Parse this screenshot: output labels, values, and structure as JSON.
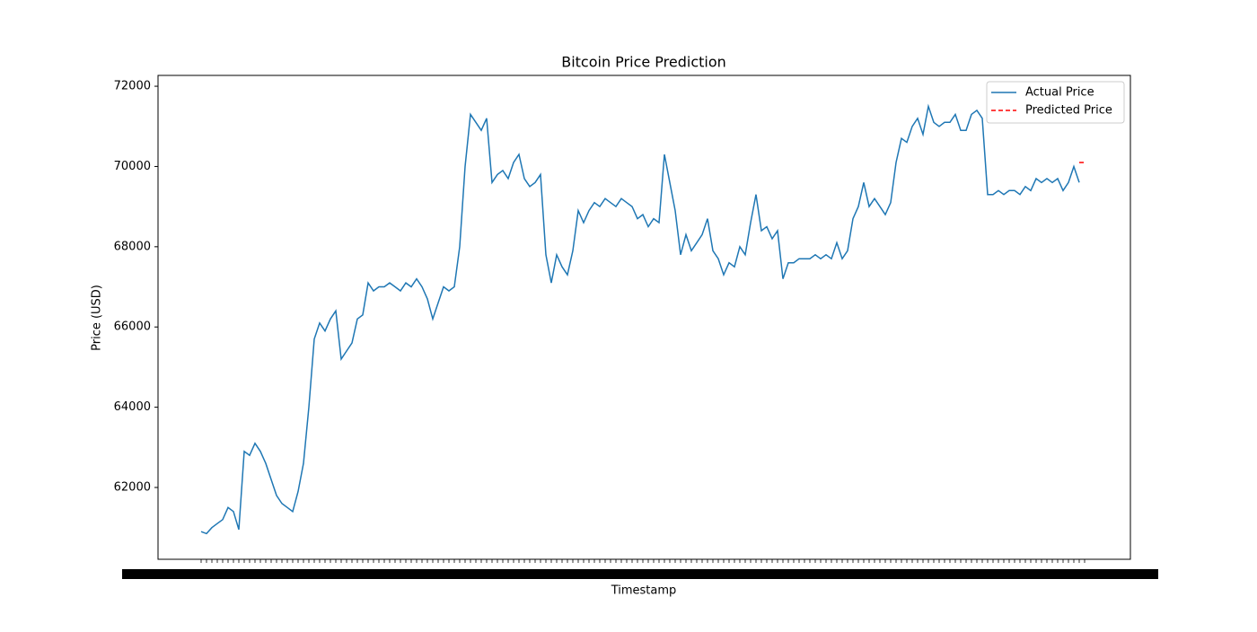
{
  "chart_data": {
    "type": "line",
    "title": "Bitcoin Price Prediction",
    "x_label": "Timestamp",
    "y_label": "Price (USD)",
    "categories": [
      null,
      null,
      null,
      null,
      null,
      null,
      null,
      null,
      null,
      null,
      null,
      null,
      null,
      null,
      null,
      null,
      null,
      null,
      null,
      null,
      null,
      null,
      null,
      null,
      null,
      null,
      null,
      null,
      null,
      null,
      null,
      null,
      null,
      null,
      null,
      null,
      null,
      null,
      null,
      null,
      null,
      null,
      null,
      null,
      null,
      null,
      null,
      null,
      null,
      null,
      null,
      null,
      null,
      null,
      null,
      null,
      null,
      null,
      null,
      null,
      null,
      null,
      null,
      null,
      null,
      null,
      null,
      null,
      null,
      null,
      null,
      null,
      null,
      null,
      null,
      null,
      null,
      null,
      null,
      null,
      null,
      null,
      null,
      null,
      null,
      null,
      null,
      null,
      null,
      null,
      null,
      null,
      null,
      null,
      null,
      null,
      null,
      null,
      null,
      null,
      null,
      null,
      null,
      null,
      null,
      null,
      null,
      null,
      null,
      null,
      null,
      null,
      null,
      null,
      null,
      null,
      null,
      null,
      null,
      null,
      null,
      null,
      null,
      null,
      null,
      null,
      null,
      null,
      null,
      null,
      null,
      null,
      null,
      null,
      null,
      null,
      null,
      null,
      null,
      null,
      null,
      null,
      null,
      null,
      null,
      null,
      null,
      null,
      null,
      null,
      null,
      null,
      null,
      null,
      null,
      null,
      null,
      null,
      null,
      null,
      null,
      null,
      null,
      null,
      null
    ],
    "series": [
      {
        "name": "Actual Price",
        "color": "#1f77b4",
        "dashed": false,
        "values": [
          60900,
          60850,
          61000,
          61100,
          61200,
          61500,
          61400,
          60950,
          62900,
          62800,
          63100,
          62900,
          62600,
          62200,
          61800,
          61600,
          61500,
          61400,
          61900,
          62600,
          64000,
          65700,
          66100,
          65900,
          66200,
          66400,
          65200,
          65400,
          65600,
          66200,
          66300,
          67100,
          66900,
          67000,
          67000,
          67100,
          67000,
          66900,
          67100,
          67000,
          67200,
          67000,
          66700,
          66200,
          66600,
          67000,
          66900,
          67000,
          68000,
          70000,
          71300,
          71100,
          70900,
          71200,
          69600,
          69800,
          69900,
          69700,
          70100,
          70300,
          69700,
          69500,
          69600,
          69800,
          67800,
          67100,
          67800,
          67500,
          67300,
          67900,
          68900,
          68600,
          68900,
          69100,
          69000,
          69200,
          69100,
          69000,
          69200,
          69100,
          69000,
          68700,
          68800,
          68500,
          68700,
          68600,
          70300,
          69600,
          68900,
          67800,
          68300,
          67900,
          68100,
          68300,
          68700,
          67900,
          67700,
          67300,
          67600,
          67500,
          68000,
          67800,
          68600,
          69300,
          68400,
          68500,
          68200,
          68400,
          67200,
          67600,
          67600,
          67700,
          67700,
          67700,
          67800,
          67700,
          67800,
          67700,
          68100,
          67700,
          67900,
          68700,
          69000,
          69600,
          69000,
          69200,
          69000,
          68800,
          69100,
          70100,
          70700,
          70600,
          71000,
          71200,
          70800,
          71500,
          71100,
          71000,
          71100,
          71100,
          71300,
          70900,
          70900,
          71300,
          71400,
          71200,
          69300,
          69300,
          69400,
          69300,
          69400,
          69400,
          69300,
          69500,
          69400,
          69700,
          69600,
          69700,
          69600,
          69700,
          69400,
          69600,
          70000,
          69600,
          null
        ]
      },
      {
        "name": "Predicted Price",
        "color": "#ff0000",
        "dashed": true,
        "values": [
          null,
          null,
          null,
          null,
          null,
          null,
          null,
          null,
          null,
          null,
          null,
          null,
          null,
          null,
          null,
          null,
          null,
          null,
          null,
          null,
          null,
          null,
          null,
          null,
          null,
          null,
          null,
          null,
          null,
          null,
          null,
          null,
          null,
          null,
          null,
          null,
          null,
          null,
          null,
          null,
          null,
          null,
          null,
          null,
          null,
          null,
          null,
          null,
          null,
          null,
          null,
          null,
          null,
          null,
          null,
          null,
          null,
          null,
          null,
          null,
          null,
          null,
          null,
          null,
          null,
          null,
          null,
          null,
          null,
          null,
          null,
          null,
          null,
          null,
          null,
          null,
          null,
          null,
          null,
          null,
          null,
          null,
          null,
          null,
          null,
          null,
          null,
          null,
          null,
          null,
          null,
          null,
          null,
          null,
          null,
          null,
          null,
          null,
          null,
          null,
          null,
          null,
          null,
          null,
          null,
          null,
          null,
          null,
          null,
          null,
          null,
          null,
          null,
          null,
          null,
          null,
          null,
          null,
          null,
          null,
          null,
          null,
          null,
          null,
          null,
          null,
          null,
          null,
          null,
          null,
          null,
          null,
          null,
          null,
          null,
          null,
          null,
          null,
          null,
          null,
          null,
          null,
          null,
          null,
          null,
          null,
          null,
          null,
          null,
          null,
          null,
          null,
          null,
          null,
          null,
          null,
          null,
          null,
          null,
          null,
          null,
          null,
          null,
          70100,
          70100
        ]
      }
    ],
    "ylim": [
      60210,
      72270
    ],
    "yticks": [
      62000,
      64000,
      66000,
      68000,
      70000,
      72000
    ],
    "legend": "upper right",
    "grid": false
  }
}
